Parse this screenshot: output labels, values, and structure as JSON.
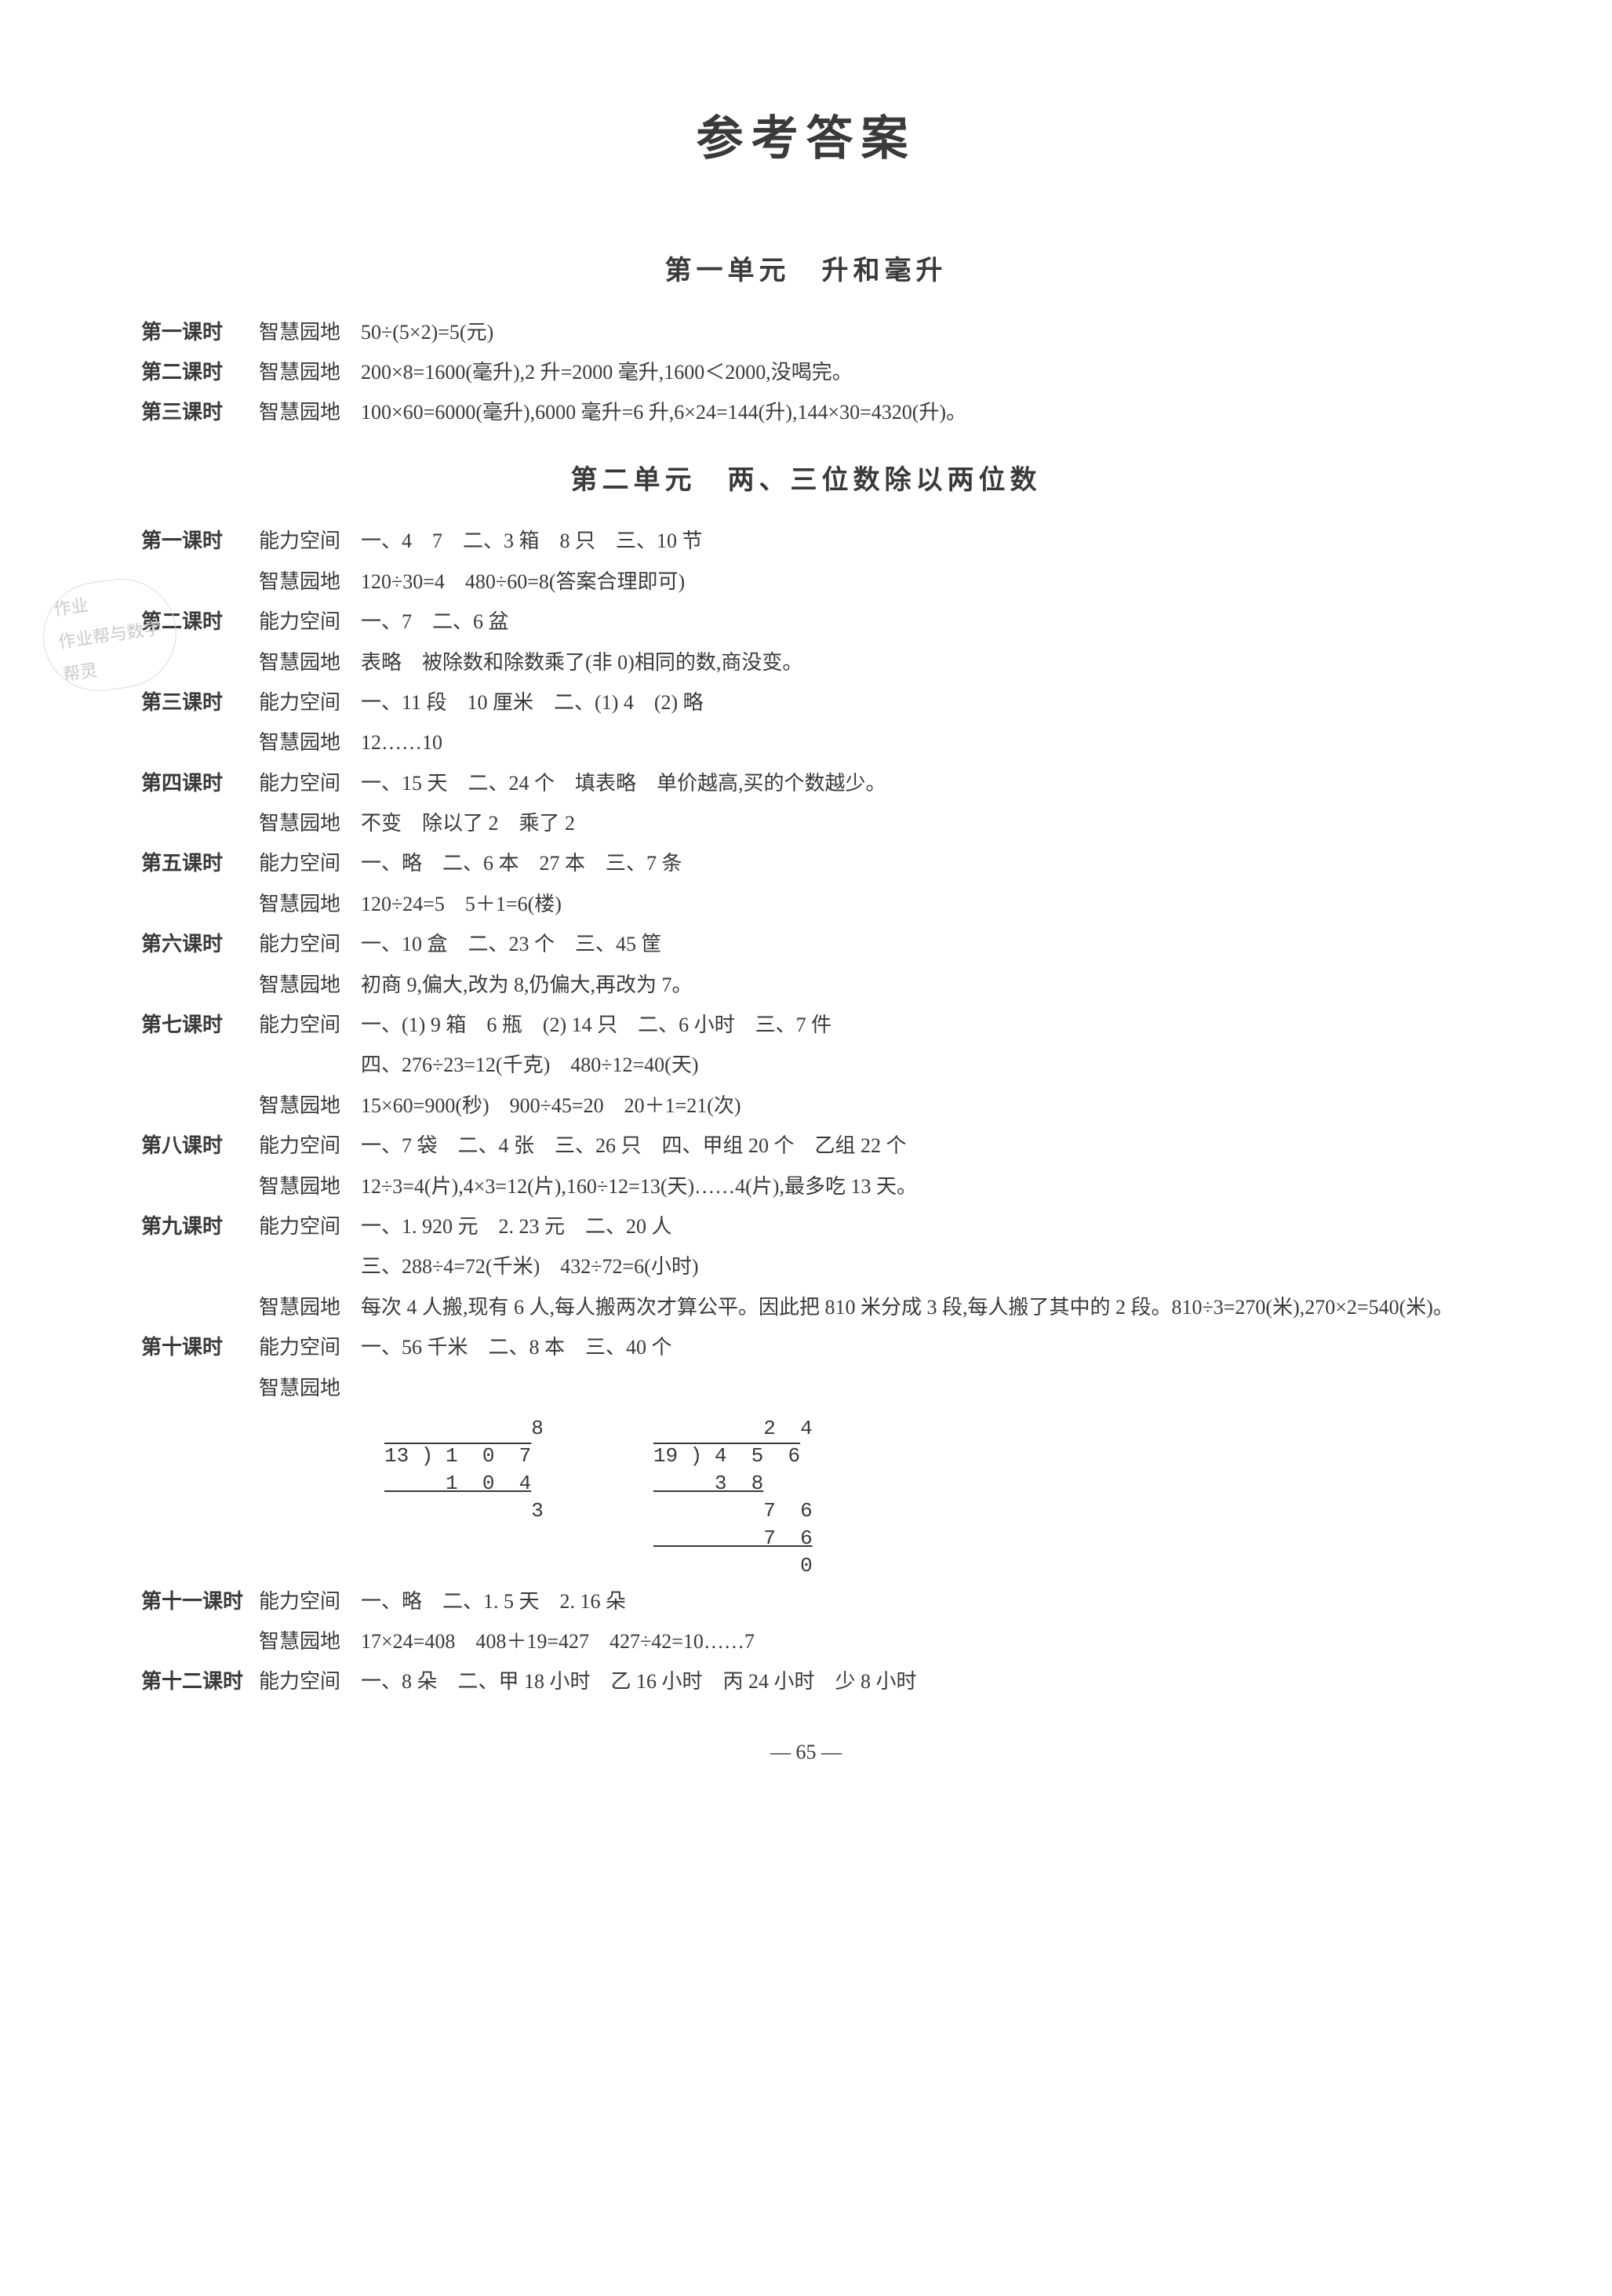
{
  "page_number": "— 65 —",
  "main_title": "参考答案",
  "unit1": {
    "title": "第一单元　升和毫升",
    "lessons": [
      {
        "name": "第一课时",
        "section": "智慧园地",
        "content": "50÷(5×2)=5(元)"
      },
      {
        "name": "第二课时",
        "section": "智慧园地",
        "content": "200×8=1600(毫升),2 升=2000 毫升,1600＜2000,没喝完。"
      },
      {
        "name": "第三课时",
        "section": "智慧园地",
        "content": "100×60=6000(毫升),6000 毫升=6 升,6×24=144(升),144×30=4320(升)。"
      }
    ]
  },
  "unit2": {
    "title": "第二单元　两、三位数除以两位数",
    "lessons": [
      {
        "name": "第一课时",
        "sections": [
          {
            "label": "能力空间",
            "content": "一、4　7　二、3 箱　8 只　三、10 节"
          },
          {
            "label": "智慧园地",
            "content": "120÷30=4　480÷60=8(答案合理即可)"
          }
        ]
      },
      {
        "name": "第二课时",
        "sections": [
          {
            "label": "能力空间",
            "content": "一、7　二、6 盆"
          },
          {
            "label": "智慧园地",
            "content": "表略　被除数和除数乘了(非 0)相同的数,商没变。"
          }
        ]
      },
      {
        "name": "第三课时",
        "sections": [
          {
            "label": "能力空间",
            "content": "一、11 段　10 厘米　二、(1) 4　(2) 略"
          },
          {
            "label": "智慧园地",
            "content": "12……10"
          }
        ]
      },
      {
        "name": "第四课时",
        "sections": [
          {
            "label": "能力空间",
            "content": "一、15 天　二、24 个　填表略　单价越高,买的个数越少。"
          },
          {
            "label": "智慧园地",
            "content": "不变　除以了 2　乘了 2"
          }
        ]
      },
      {
        "name": "第五课时",
        "sections": [
          {
            "label": "能力空间",
            "content": "一、略　二、6 本　27 本　三、7 条"
          },
          {
            "label": "智慧园地",
            "content": "120÷24=5　5＋1=6(楼)"
          }
        ]
      },
      {
        "name": "第六课时",
        "sections": [
          {
            "label": "能力空间",
            "content": "一、10 盒　二、23 个　三、45 筐"
          },
          {
            "label": "智慧园地",
            "content": "初商 9,偏大,改为 8,仍偏大,再改为 7。"
          }
        ]
      },
      {
        "name": "第七课时",
        "sections": [
          {
            "label": "能力空间",
            "content": "一、(1) 9 箱　6 瓶　(2) 14 只　二、6 小时　三、7 件"
          },
          {
            "label": "",
            "content": "四、276÷23=12(千克)　480÷12=40(天)"
          },
          {
            "label": "智慧园地",
            "content": "15×60=900(秒)　900÷45=20　20＋1=21(次)"
          }
        ]
      },
      {
        "name": "第八课时",
        "sections": [
          {
            "label": "能力空间",
            "content": "一、7 袋　二、4 张　三、26 只　四、甲组 20 个　乙组 22 个"
          },
          {
            "label": "智慧园地",
            "content": "12÷3=4(片),4×3=12(片),160÷12=13(天)……4(片),最多吃 13 天。"
          }
        ]
      },
      {
        "name": "第九课时",
        "sections": [
          {
            "label": "能力空间",
            "content": "一、1. 920 元　2. 23 元　二、20 人"
          },
          {
            "label": "",
            "content": "三、288÷4=72(千米)　432÷72=6(小时)"
          },
          {
            "label": "智慧园地",
            "content": "每次 4 人搬,现有 6 人,每人搬两次才算公平。因此把 810 米分成 3 段,每人搬了其中的 2 段。810÷3=270(米),270×2=540(米)。"
          }
        ]
      },
      {
        "name": "第十课时",
        "sections": [
          {
            "label": "能力空间",
            "content": "一、56 千米　二、8 本　三、40 个"
          },
          {
            "label": "智慧园地",
            "content": ""
          }
        ]
      }
    ],
    "division1": {
      "quotient": "            8",
      "divisor_row": "13 ) 1  0  7",
      "line1": "     1  0  4",
      "line2": "            3"
    },
    "division2": {
      "quotient": "         2  4",
      "divisor_row": "19 ) 4  5  6",
      "line1": "     3  8",
      "line2": "         7  6",
      "line3": "         7  6",
      "line4": "            0"
    },
    "lesson11": {
      "name": "第十一课时",
      "sections": [
        {
          "label": "能力空间",
          "content": "一、略　二、1. 5 天　2. 16 朵"
        },
        {
          "label": "智慧园地",
          "content": "17×24=408　408＋19=427　427÷42=10……7"
        }
      ]
    },
    "lesson12": {
      "name": "第十二课时",
      "sections": [
        {
          "label": "能力空间",
          "content": "一、8 朵　二、甲 18 小时　乙 16 小时　丙 24 小时　少 8 小时"
        }
      ]
    }
  },
  "watermark_text": "作业\n作业帮与数学\n帮灵"
}
